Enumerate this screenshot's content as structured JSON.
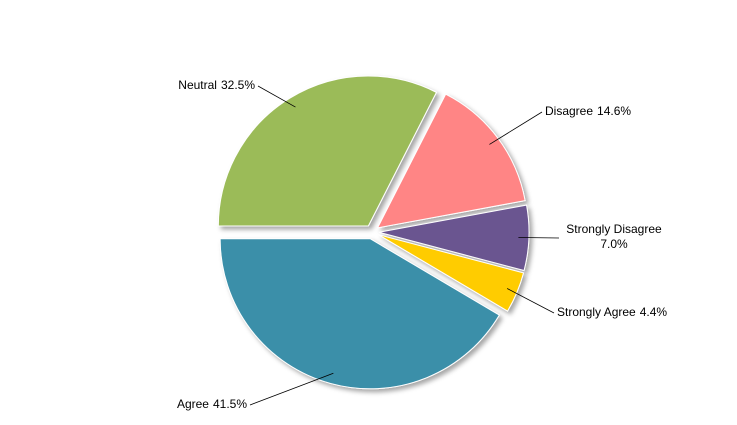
{
  "chart_data": {
    "type": "pie",
    "categories": [
      "Neutral",
      "Disagree",
      "Strongly Disagree",
      "Strongly Agree",
      "Agree"
    ],
    "values": [
      32.5,
      14.6,
      7.0,
      4.4,
      41.5
    ],
    "value_labels": [
      "32.5%",
      "14.6%",
      "7.0%",
      "4.4%",
      "41.5%"
    ],
    "colors": [
      "#9bbb59",
      "#ff8585",
      "#6a5490",
      "#ffcc00",
      "#3a8fa9"
    ]
  }
}
